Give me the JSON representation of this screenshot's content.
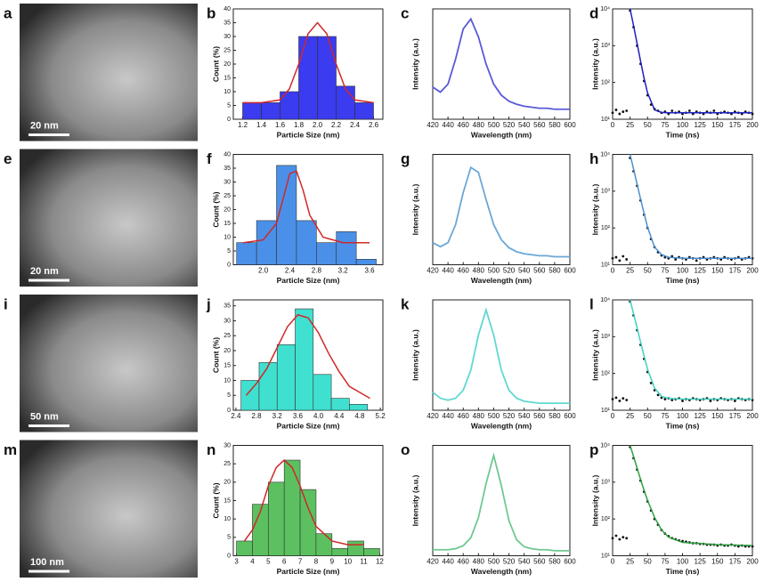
{
  "images": [
    {
      "label": "a",
      "scale_bar": "20 nm"
    },
    {
      "label": "e",
      "scale_bar": "20 nm"
    },
    {
      "label": "i",
      "scale_bar": "50 nm"
    },
    {
      "label": "m",
      "scale_bar": "100 nm"
    }
  ],
  "chart_data": [
    {
      "label": "b",
      "type": "histogram",
      "xlabel": "Particle Size (nm)",
      "ylabel": "Count (%)",
      "color": "#3b3bf0",
      "bins": [
        1.2,
        1.4,
        1.6,
        1.8,
        2.0,
        2.2,
        2.4,
        2.6
      ],
      "values": [
        6,
        6,
        10,
        30,
        30,
        12,
        6
      ],
      "xlim": [
        1.1,
        2.7
      ],
      "xticks": [
        1.2,
        1.4,
        1.6,
        1.8,
        {
          "value": 2,
          "label": "2.0"
        },
        2.2,
        2.4,
        2.6
      ],
      "ylim": [
        0,
        40
      ],
      "yticks": [
        0,
        5,
        10,
        15,
        20,
        25,
        30,
        35,
        40
      ],
      "fit": {
        "color": "#d02828",
        "x": [
          1.2,
          1.4,
          1.6,
          1.7,
          1.8,
          1.9,
          2.0,
          2.1,
          2.2,
          2.3,
          2.4,
          2.6
        ],
        "y": [
          6,
          6,
          7,
          11,
          20,
          31,
          35,
          31,
          20,
          11,
          7,
          6
        ]
      }
    },
    {
      "label": "c",
      "type": "line",
      "xlabel": "Wavelength (nm)",
      "ylabel": "Intensity (a.u.)",
      "color": "#5a5ad8",
      "x": [
        420,
        430,
        440,
        450,
        460,
        470,
        480,
        490,
        500,
        510,
        520,
        530,
        540,
        550,
        560,
        570,
        580,
        590,
        600
      ],
      "values": [
        0.32,
        0.27,
        0.35,
        0.6,
        0.9,
        1.0,
        0.82,
        0.55,
        0.35,
        0.24,
        0.18,
        0.15,
        0.13,
        0.12,
        0.11,
        0.11,
        0.1,
        0.1,
        0.1
      ],
      "xlim": [
        420,
        600
      ],
      "xticks": [
        420,
        440,
        460,
        480,
        500,
        520,
        540,
        560,
        580,
        600
      ],
      "ylim": [
        0,
        1.1
      ]
    },
    {
      "label": "d",
      "type": "scatter",
      "xlabel": "Time (ns)",
      "ylabel": "Intensity (a.u.)",
      "color": "#111111",
      "log_y": true,
      "x": [
        0,
        5,
        10,
        15,
        20,
        25,
        30,
        35,
        40,
        45,
        50,
        55,
        60,
        65,
        70,
        75,
        80,
        85,
        90,
        95,
        100,
        105,
        110,
        115,
        120,
        125,
        130,
        135,
        140,
        145,
        150,
        155,
        160,
        165,
        170,
        175,
        180,
        185,
        190,
        195,
        200
      ],
      "values": [
        15,
        18,
        14,
        16,
        17,
        9000,
        3200,
        1000,
        320,
        110,
        45,
        25,
        19,
        17,
        15,
        16,
        14,
        17,
        15,
        16,
        14,
        15,
        17,
        14,
        16,
        15,
        14,
        16,
        15,
        17,
        14,
        15,
        16,
        15,
        14,
        16,
        15,
        14,
        16,
        15,
        14
      ],
      "xlim": [
        0,
        200
      ],
      "xticks": [
        0,
        25,
        50,
        75,
        100,
        125,
        150,
        175,
        200
      ],
      "ylim": [
        10,
        10000
      ],
      "yticks": [
        {
          "value": 10,
          "label": "10¹"
        },
        {
          "value": 100,
          "label": "10²"
        },
        {
          "value": 1000,
          "label": "10³"
        },
        {
          "value": 10000,
          "label": "10⁴"
        }
      ],
      "fit": {
        "color": "#2020c0",
        "x": [
          25,
          30,
          35,
          40,
          45,
          50,
          60,
          70,
          80,
          100,
          150,
          200
        ],
        "y": [
          10000,
          3500,
          1150,
          380,
          130,
          52,
          18,
          15.3,
          15,
          15,
          15,
          15
        ]
      }
    },
    {
      "label": "f",
      "type": "histogram",
      "xlabel": "Particle Size (nm)",
      "ylabel": "Count (%)",
      "color": "#4a90e8",
      "bins": [
        1.6,
        1.9,
        2.2,
        2.5,
        2.8,
        3.1,
        3.4,
        3.7
      ],
      "values": [
        8,
        16,
        36,
        16,
        8,
        12,
        2
      ],
      "xlim": [
        1.55,
        3.8
      ],
      "xticks": [
        {
          "value": 2,
          "label": "2.0"
        },
        2.4,
        2.8,
        3.2,
        3.6
      ],
      "ylim": [
        0,
        40
      ],
      "yticks": [
        0,
        5,
        10,
        15,
        20,
        25,
        30,
        35,
        40
      ],
      "fit": {
        "color": "#d02828",
        "x": [
          1.7,
          2.0,
          2.2,
          2.3,
          2.4,
          2.5,
          2.6,
          2.7,
          2.9,
          3.2,
          3.6
        ],
        "y": [
          8,
          9,
          15,
          24,
          33,
          34,
          27,
          18,
          10,
          8,
          8
        ]
      }
    },
    {
      "label": "g",
      "type": "line",
      "xlabel": "Wavelength (nm)",
      "ylabel": "Intensity (a.u.)",
      "color": "#6aa8d8",
      "x": [
        420,
        430,
        440,
        450,
        460,
        470,
        480,
        490,
        500,
        510,
        520,
        530,
        540,
        550,
        560,
        570,
        580,
        590,
        600
      ],
      "values": [
        0.22,
        0.18,
        0.22,
        0.4,
        0.72,
        0.97,
        0.92,
        0.65,
        0.4,
        0.25,
        0.17,
        0.13,
        0.11,
        0.1,
        0.09,
        0.09,
        0.08,
        0.08,
        0.08
      ],
      "xlim": [
        420,
        600
      ],
      "xticks": [
        420,
        440,
        460,
        480,
        500,
        520,
        540,
        560,
        580,
        600
      ],
      "ylim": [
        0,
        1.1
      ]
    },
    {
      "label": "h",
      "type": "scatter",
      "xlabel": "Time (ns)",
      "ylabel": "Intensity (a.u.)",
      "color": "#111111",
      "log_y": true,
      "x": [
        0,
        5,
        10,
        15,
        20,
        25,
        30,
        35,
        40,
        45,
        50,
        55,
        60,
        65,
        70,
        75,
        80,
        85,
        90,
        95,
        100,
        105,
        110,
        115,
        120,
        125,
        130,
        135,
        140,
        145,
        150,
        155,
        160,
        165,
        170,
        175,
        180,
        185,
        190,
        195,
        200
      ],
      "values": [
        15,
        16,
        13,
        17,
        14,
        8000,
        3500,
        1400,
        560,
        230,
        100,
        50,
        30,
        22,
        18,
        16,
        15,
        17,
        14,
        16,
        15,
        14,
        16,
        15,
        13,
        15,
        16,
        14,
        15,
        16,
        15,
        14,
        16,
        15,
        14,
        15,
        16,
        14,
        15,
        16,
        15
      ],
      "xlim": [
        0,
        200
      ],
      "xticks": [
        0,
        25,
        50,
        75,
        100,
        125,
        150,
        175,
        200
      ],
      "ylim": [
        10,
        10000
      ],
      "yticks": [
        {
          "value": 10,
          "label": "10¹"
        },
        {
          "value": 100,
          "label": "10²"
        },
        {
          "value": 1000,
          "label": "10³"
        },
        {
          "value": 10000,
          "label": "10⁴"
        }
      ],
      "fit": {
        "color": "#4a90d0",
        "x": [
          25,
          30,
          35,
          40,
          45,
          50,
          60,
          70,
          80,
          100,
          150,
          200
        ],
        "y": [
          10000,
          4000,
          1550,
          620,
          250,
          105,
          30,
          19,
          16,
          15,
          15,
          15
        ]
      }
    },
    {
      "label": "j",
      "type": "histogram",
      "xlabel": "Particle Size (nm)",
      "ylabel": "Count (%)",
      "color": "#40e0d0",
      "bins": [
        2.5,
        2.85,
        3.2,
        3.55,
        3.9,
        4.25,
        4.6,
        4.95
      ],
      "values": [
        10,
        16,
        22,
        34,
        12,
        4,
        2
      ],
      "xlim": [
        2.35,
        5.25
      ],
      "xticks": [
        2.4,
        2.8,
        3.2,
        3.6,
        {
          "value": 4,
          "label": "4.0"
        },
        4.4,
        4.8,
        5.2
      ],
      "ylim": [
        0,
        37
      ],
      "yticks": [
        0,
        5,
        10,
        15,
        20,
        25,
        30,
        35
      ],
      "fit": {
        "color": "#d02828",
        "x": [
          2.6,
          2.8,
          3.0,
          3.2,
          3.4,
          3.6,
          3.8,
          4.0,
          4.2,
          4.4,
          4.6,
          4.8,
          5.0
        ],
        "y": [
          5,
          9,
          14,
          21,
          28,
          32,
          31,
          26,
          19,
          13,
          8,
          6,
          4
        ]
      }
    },
    {
      "label": "k",
      "type": "line",
      "xlabel": "Wavelength (nm)",
      "ylabel": "Intensity (a.u.)",
      "color": "#60d8d0",
      "x": [
        420,
        430,
        440,
        450,
        460,
        470,
        480,
        490,
        500,
        510,
        520,
        530,
        540,
        550,
        560,
        570,
        580,
        590,
        600
      ],
      "values": [
        0.18,
        0.12,
        0.1,
        0.12,
        0.2,
        0.4,
        0.75,
        1.0,
        0.75,
        0.4,
        0.2,
        0.12,
        0.09,
        0.08,
        0.07,
        0.07,
        0.07,
        0.07,
        0.07
      ],
      "xlim": [
        420,
        600
      ],
      "xticks": [
        420,
        440,
        460,
        480,
        500,
        520,
        540,
        560,
        580,
        600
      ],
      "ylim": [
        0,
        1.1
      ]
    },
    {
      "label": "l",
      "type": "scatter",
      "xlabel": "Time (ns)",
      "ylabel": "Intensity (a.u.)",
      "color": "#111111",
      "log_y": true,
      "x": [
        0,
        5,
        10,
        15,
        20,
        25,
        30,
        35,
        40,
        45,
        50,
        55,
        60,
        65,
        70,
        75,
        80,
        85,
        90,
        95,
        100,
        105,
        110,
        115,
        120,
        125,
        130,
        135,
        140,
        145,
        150,
        155,
        160,
        165,
        170,
        175,
        180,
        185,
        190,
        195,
        200
      ],
      "values": [
        20,
        22,
        18,
        21,
        19,
        9000,
        3800,
        1500,
        600,
        250,
        110,
        55,
        35,
        26,
        22,
        20,
        21,
        19,
        20,
        21,
        18,
        20,
        19,
        21,
        20,
        19,
        20,
        21,
        18,
        20,
        19,
        21,
        20,
        19,
        20,
        18,
        21,
        20,
        19,
        20,
        19
      ],
      "xlim": [
        0,
        200
      ],
      "xticks": [
        0,
        25,
        50,
        75,
        100,
        125,
        150,
        175,
        200
      ],
      "ylim": [
        10,
        10000
      ],
      "yticks": [
        {
          "value": 10,
          "label": "10¹"
        },
        {
          "value": 100,
          "label": "10²"
        },
        {
          "value": 1000,
          "label": "10³"
        },
        {
          "value": 10000,
          "label": "10⁴"
        }
      ],
      "fit": {
        "color": "#40d0c0",
        "x": [
          25,
          30,
          35,
          40,
          45,
          50,
          60,
          70,
          80,
          100,
          150,
          200
        ],
        "y": [
          10000,
          4200,
          1750,
          720,
          300,
          130,
          40,
          24,
          21,
          20,
          20,
          20
        ]
      }
    },
    {
      "label": "n",
      "type": "histogram",
      "xlabel": "Particle Size (nm)",
      "ylabel": "Count (%)",
      "color": "#5cc060",
      "bins": [
        3,
        4,
        5,
        6,
        7,
        8,
        9,
        10,
        11,
        12
      ],
      "values": [
        4,
        14,
        20,
        26,
        18,
        6,
        2,
        4,
        2
      ],
      "xlim": [
        2.8,
        12.2
      ],
      "xticks": [
        3,
        4,
        5,
        6,
        7,
        8,
        9,
        10,
        11,
        12
      ],
      "ylim": [
        0,
        30
      ],
      "yticks": [
        0,
        5,
        10,
        15,
        20,
        25,
        30
      ],
      "fit": {
        "color": "#d02828",
        "x": [
          3.5,
          4,
          4.5,
          5,
          5.5,
          6,
          6.5,
          7,
          7.5,
          8,
          9,
          10,
          11
        ],
        "y": [
          4,
          7,
          12,
          19,
          24,
          26,
          24,
          19,
          13,
          8,
          4,
          3,
          3
        ]
      }
    },
    {
      "label": "o",
      "type": "line",
      "xlabel": "Wavelength (nm)",
      "ylabel": "Intensity (a.u.)",
      "color": "#70c890",
      "x": [
        420,
        430,
        440,
        450,
        460,
        470,
        480,
        490,
        500,
        510,
        520,
        530,
        540,
        550,
        560,
        570,
        580,
        590,
        600
      ],
      "values": [
        0.06,
        0.06,
        0.06,
        0.07,
        0.1,
        0.18,
        0.38,
        0.72,
        1.0,
        0.7,
        0.35,
        0.16,
        0.09,
        0.07,
        0.06,
        0.06,
        0.05,
        0.05,
        0.05
      ],
      "xlim": [
        420,
        600
      ],
      "xticks": [
        420,
        440,
        460,
        480,
        500,
        520,
        540,
        560,
        580,
        600
      ],
      "ylim": [
        0,
        1.1
      ]
    },
    {
      "label": "p",
      "type": "scatter",
      "xlabel": "Time (ns)",
      "ylabel": "Intensity (a.u.)",
      "color": "#111111",
      "log_y": true,
      "x": [
        0,
        5,
        10,
        15,
        20,
        25,
        30,
        35,
        40,
        45,
        50,
        55,
        60,
        65,
        70,
        75,
        80,
        85,
        90,
        95,
        100,
        105,
        110,
        115,
        120,
        125,
        130,
        135,
        140,
        145,
        150,
        155,
        160,
        165,
        170,
        175,
        180,
        185,
        190,
        195,
        200
      ],
      "values": [
        30,
        35,
        28,
        32,
        30,
        9000,
        4500,
        2200,
        1100,
        550,
        300,
        170,
        100,
        70,
        50,
        40,
        34,
        30,
        28,
        26,
        25,
        24,
        23,
        22,
        22,
        21,
        21,
        20,
        20,
        20,
        19,
        20,
        19,
        19,
        20,
        19,
        18,
        19,
        18,
        18,
        18
      ],
      "xlim": [
        0,
        200
      ],
      "xticks": [
        0,
        25,
        50,
        75,
        100,
        125,
        150,
        175,
        200
      ],
      "ylim": [
        10,
        10000
      ],
      "yticks": [
        {
          "value": 10,
          "label": "10¹"
        },
        {
          "value": 100,
          "label": "10²"
        },
        {
          "value": 1000,
          "label": "10³"
        },
        {
          "value": 10000,
          "label": "10⁴"
        }
      ],
      "fit": {
        "color": "#30a040",
        "x": [
          25,
          30,
          35,
          40,
          45,
          50,
          60,
          70,
          80,
          100,
          150,
          200
        ],
        "y": [
          10000,
          5000,
          2400,
          1200,
          600,
          320,
          110,
          50,
          32,
          23,
          20,
          19
        ]
      }
    }
  ]
}
